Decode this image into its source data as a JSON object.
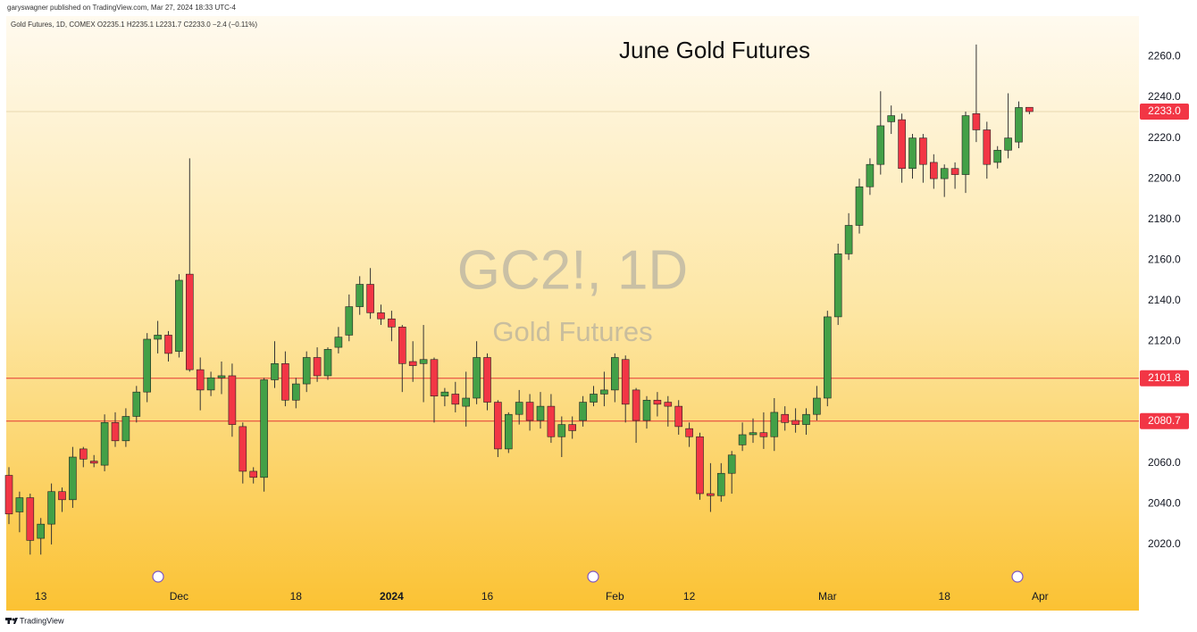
{
  "header": {
    "publisher": "garyswagner published on TradingView.com, Mar 27, 2024 18:33 UTC-4",
    "symbol_info": "Gold Futures, 1D, COMEX  O2235.1  H2235.1  L2231.7  C2233.0  −2.4 (−0.11%)"
  },
  "footer": {
    "brand": "TradingView"
  },
  "chart_data": {
    "type": "candlestick",
    "title": "June Gold Futures",
    "watermark": "GC2!, 1D",
    "watermark_subtitle": "Gold Futures",
    "up_color": "#43a047",
    "down_color": "#f23645",
    "categories": [
      null,
      null,
      null,
      "13",
      null,
      null,
      null,
      null,
      null,
      null,
      null,
      null,
      null,
      null,
      null,
      null,
      "Dec",
      null,
      null,
      null,
      null,
      null,
      null,
      null,
      null,
      null,
      null,
      "18",
      null,
      null,
      null,
      null,
      null,
      null,
      null,
      null,
      "2024",
      null,
      null,
      null,
      null,
      null,
      null,
      null,
      null,
      "16",
      null,
      null,
      null,
      null,
      null,
      null,
      null,
      null,
      null,
      null,
      null,
      "Feb",
      null,
      null,
      null,
      null,
      null,
      null,
      "12",
      null,
      null,
      null,
      null,
      null,
      null,
      null,
      null,
      null,
      null,
      null,
      null,
      "Mar",
      null,
      null,
      null,
      null,
      null,
      null,
      null,
      null,
      null,
      null,
      "18",
      null,
      null,
      null,
      null,
      null,
      null,
      null,
      null,
      "Apr",
      null,
      null,
      null,
      null,
      null,
      null,
      null,
      null,
      null
    ],
    "open": [
      2054,
      2036,
      2043,
      2023,
      2030,
      2046,
      2042,
      2067,
      2061,
      2059,
      2080,
      2071,
      2083,
      2095,
      2121,
      2123,
      2115,
      2153,
      2106,
      2096,
      2102,
      2103,
      2078,
      2056,
      2053,
      2101,
      2109,
      2091,
      2099,
      2112,
      2103,
      2117,
      2123,
      2137,
      2148,
      2134,
      2131,
      2127,
      2110,
      2109,
      2111,
      2093,
      2094,
      2088,
      2092,
      2112,
      2090,
      2067,
      2084,
      2090,
      2081,
      2088,
      2073,
      2079,
      2081,
      2090,
      2094,
      2096,
      2111,
      2096,
      2081,
      2091,
      2090,
      2088,
      2077,
      2073,
      2045,
      2044,
      2055,
      2069,
      2074,
      2075,
      2073,
      2084,
      2081,
      2079,
      2084,
      2092,
      2132,
      2163,
      2177,
      2196,
      2207,
      2228,
      2229,
      2205,
      2220,
      2208,
      2200,
      2205,
      2202,
      2232,
      2224,
      2208,
      2214,
      2218,
      2235.1,
      null,
      null,
      null,
      null,
      null,
      null,
      null,
      null,
      null,
      null
    ],
    "high": [
      2058,
      2046,
      2045,
      2033,
      2050,
      2048,
      2068,
      2068,
      2064,
      2084,
      2085,
      2087,
      2098,
      2124,
      2130,
      2125,
      2153,
      2210,
      2112,
      2105,
      2110,
      2109,
      2080,
      2058,
      2102,
      2120,
      2115,
      2102,
      2115,
      2117,
      2117,
      2127,
      2143,
      2152,
      2156,
      2138,
      2135,
      2128,
      2120,
      2128,
      2112,
      2097,
      2100,
      2105,
      2120,
      2114,
      2091,
      2085,
      2096,
      2094,
      2095,
      2094,
      2083,
      2083,
      2093,
      2098,
      2105,
      2114,
      2113,
      2097,
      2093,
      2095,
      2093,
      2091,
      2080,
      2075,
      2060,
      2060,
      2066,
      2080,
      2082,
      2085,
      2092,
      2088,
      2087,
      2087,
      2098,
      2135,
      2168,
      2183,
      2200,
      2210,
      2243,
      2236,
      2232,
      2222,
      2222,
      2212,
      2207,
      2208,
      2233,
      2266,
      2228,
      2216,
      2242,
      2238,
      2235.1,
      null,
      null,
      null,
      null,
      null,
      null,
      null,
      null,
      null,
      null
    ],
    "low": [
      2030,
      2026,
      2015,
      2015,
      2020,
      2036,
      2038,
      2058,
      2058,
      2056,
      2068,
      2068,
      2080,
      2090,
      2114,
      2110,
      2112,
      2105,
      2086,
      2093,
      2094,
      2073,
      2050,
      2050,
      2046,
      2097,
      2088,
      2087,
      2095,
      2100,
      2101,
      2114,
      2120,
      2133,
      2131,
      2128,
      2120,
      2095,
      2100,
      2090,
      2080,
      2088,
      2085,
      2078,
      2089,
      2086,
      2063,
      2065,
      2079,
      2076,
      2077,
      2070,
      2063,
      2072,
      2078,
      2088,
      2088,
      2090,
      2080,
      2070,
      2077,
      2083,
      2078,
      2074,
      2068,
      2042,
      2036,
      2041,
      2045,
      2066,
      2070,
      2067,
      2066,
      2076,
      2075,
      2074,
      2081,
      2088,
      2128,
      2160,
      2173,
      2192,
      2202,
      2222,
      2198,
      2200,
      2198,
      2195,
      2191,
      2195,
      2193,
      2218,
      2200,
      2205,
      2210,
      2215,
      2231.7,
      null,
      null,
      null,
      null,
      null,
      null,
      null,
      null,
      null,
      null
    ],
    "close": [
      2035,
      2043,
      2022,
      2030,
      2046,
      2042,
      2063,
      2062,
      2060,
      2080,
      2071,
      2083,
      2095,
      2121,
      2123,
      2114,
      2150,
      2106,
      2096,
      2102,
      2103,
      2079,
      2056,
      2053,
      2101,
      2109,
      2091,
      2099,
      2112,
      2103,
      2116,
      2122,
      2137,
      2148,
      2134,
      2131,
      2127,
      2109,
      2108,
      2111,
      2093,
      2095,
      2089,
      2092,
      2112,
      2090,
      2067,
      2084,
      2090,
      2081,
      2088,
      2073,
      2079,
      2076,
      2090,
      2094,
      2096,
      2112,
      2089,
      2081,
      2091,
      2089,
      2088,
      2078,
      2073,
      2045,
      2044,
      2055,
      2064,
      2074,
      2075,
      2073,
      2085,
      2080,
      2079,
      2084,
      2092,
      2132,
      2163,
      2177,
      2196,
      2207,
      2226,
      2231,
      2205,
      2220,
      2207,
      2200,
      2205,
      2202,
      2231,
      2224,
      2207,
      2214,
      2220,
      2235,
      2233.0,
      null,
      null,
      null,
      null,
      null,
      null,
      null,
      null,
      null,
      null
    ],
    "ylim": [
      1998,
      2280
    ],
    "yticks": [
      {
        "value": 2020,
        "label": "2020.0"
      },
      {
        "value": 2040,
        "label": "2040.0"
      },
      {
        "value": 2060,
        "label": "2060.0"
      },
      {
        "value": 2080,
        "label": "2080.0"
      },
      {
        "value": 2100,
        "label": "2100.0"
      },
      {
        "value": 2120,
        "label": "2120.0"
      },
      {
        "value": 2140,
        "label": "2140.0"
      },
      {
        "value": 2160,
        "label": "2160.0"
      },
      {
        "value": 2180,
        "label": "2180.0"
      },
      {
        "value": 2200,
        "label": "2200.0"
      },
      {
        "value": 2220,
        "label": "2220.0"
      },
      {
        "value": 2240,
        "label": "2240.0"
      },
      {
        "value": 2260,
        "label": "2260.0"
      }
    ],
    "price_lines": [
      {
        "value": 2233.0,
        "label": "2233.0",
        "color": "#e8d9b0"
      },
      {
        "value": 2101.8,
        "label": "2101.8",
        "color": "#e53935"
      },
      {
        "value": 2080.7,
        "label": "2080.7",
        "color": "#e53935"
      }
    ],
    "label_color": "#f23645",
    "grid": true
  }
}
